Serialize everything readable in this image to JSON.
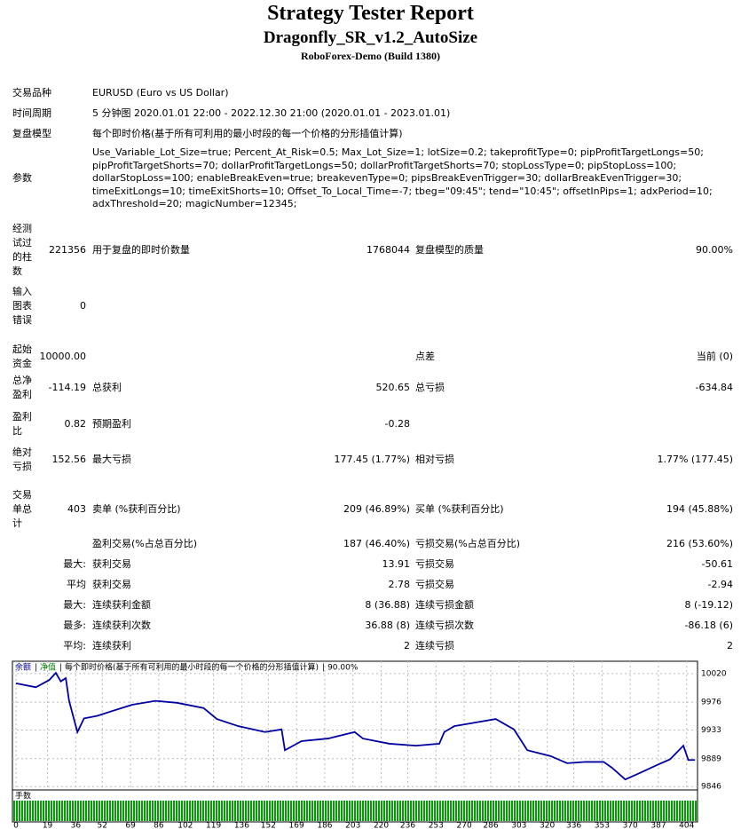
{
  "header": {
    "title": "Strategy Tester Report",
    "subtitle": "Dragonfly_SR_v1.2_AutoSize",
    "server": "RoboForex-Demo (Build 1380)"
  },
  "settings": [
    {
      "label": "交易品种",
      "value": "EURUSD (Euro vs US Dollar)"
    },
    {
      "label": "时间周期",
      "value": "5 分钟图 2020.01.01 22:00 - 2022.12.30 21:00 (2020.01.01 - 2023.01.01)"
    },
    {
      "label": "复盘模型",
      "value": "每个即时价格(基于所有可利用的最小时段的每一个价格的分形插值计算)"
    }
  ],
  "parameters": {
    "label": "参数",
    "lines": [
      "Use_Variable_Lot_Size=true; Percent_At_Risk=0.5; Max_Lot_Size=1; lotSize=0.2; takeprofitType=0; pipProfitTargetLongs=50;",
      "pipProfitTargetShorts=70; dollarProfitTargetLongs=50; dollarProfitTargetShorts=70; stopLossType=0; pipStopLoss=100;",
      "dollarStopLoss=100; enableBreakEven=true; breakevenType=0; pipsBreakEvenTrigger=30; dollarBreakEvenTrigger=30;",
      "timeExitLongs=10; timeExitShorts=10; Offset_To_Local_Time=-7; tbeg=\"09:45\"; tend=\"10:45\"; offsetInPips=1; adxPeriod=10;",
      "adxThreshold=20; magicNumber=12345;"
    ]
  },
  "stats": [
    {
      "label": "经测试过的柱数",
      "value": "221356",
      "l2": "用于复盘的即时价数量",
      "v2": "1768044",
      "l3": "复盘模型的质量",
      "v3": "90.00%"
    },
    {
      "label": "输入图表错误",
      "value": "0"
    },
    {
      "label": "起始资金",
      "value": "10000.00",
      "l3": "点差",
      "v3": "当前 (0)"
    },
    {
      "label": "总净盈利",
      "value": "-114.19",
      "l2": "总获利",
      "v2": "520.65",
      "l3": "总亏损",
      "v3": "-634.84"
    },
    {
      "label": "盈利比",
      "value": "0.82",
      "l2": "预期盈利",
      "v2": "-0.28"
    },
    {
      "label": "绝对亏损",
      "value": "152.56",
      "l2": "最大亏损",
      "v2": "177.45 (1.77%)",
      "l3": "相对亏损",
      "v3": "1.77% (177.45)"
    },
    {
      "label": "交易单总计",
      "value": "403",
      "l2": "卖单 (%获利百分比)",
      "v2": "209 (46.89%)",
      "l3": "买单 (%获利百分比)",
      "v3": "194 (45.88%)"
    },
    {
      "l2": "盈利交易(%占总百分比)",
      "v2": "187 (46.40%)",
      "l3": "亏损交易(%占总百分比)",
      "v3": "216 (53.60%)"
    },
    {
      "value": "最大:",
      "l2": "获利交易",
      "v2": "13.91",
      "l3": "亏损交易",
      "v3": "-50.61"
    },
    {
      "value": "平均",
      "l2": "获利交易",
      "v2": "2.78",
      "l3": "亏损交易",
      "v3": "-2.94"
    },
    {
      "value": "最大:",
      "l2": "连续获利金额",
      "v2": "8 (36.88)",
      "l3": "连续亏损金额",
      "v3": "8 (-19.12)"
    },
    {
      "value": "最多:",
      "l2": "连续获利次数",
      "v2": "36.88 (8)",
      "l3": "连续亏损次数",
      "v3": "-86.18 (6)"
    },
    {
      "value": "平均:",
      "l2": "连续获利",
      "v2": "2",
      "l3": "连续亏损",
      "v3": "2"
    }
  ],
  "chart_data": {
    "type": "line",
    "legend": [
      "净值",
      "每个即时价格(基于所有可利用的最小时段的每一个价格的分形插值计算)",
      "90.00%"
    ],
    "legend_colors": [
      "#008000",
      "#000000",
      "#000000"
    ],
    "x": [
      0,
      12,
      20,
      24,
      27,
      30,
      32,
      37,
      41,
      49,
      60,
      70,
      84,
      97,
      113,
      121,
      134,
      150,
      160,
      162,
      172,
      188,
      204,
      209,
      225,
      241,
      255,
      258,
      264,
      273,
      289,
      300,
      308,
      322,
      332,
      343,
      354,
      359,
      367,
      375,
      386,
      394,
      402,
      405,
      409
    ],
    "series": [
      {
        "name": "余额",
        "color": "#0000a0",
        "values": [
          10005,
          9999,
          10010,
          10021,
          10008,
          10013,
          9978,
          9930,
          9951,
          9955,
          9964,
          9972,
          9978,
          9975,
          9967,
          9950,
          9939,
          9930,
          9934,
          9902,
          9916,
          9920,
          9930,
          9920,
          9912,
          9909,
          9912,
          9930,
          9939,
          9943,
          9950,
          9934,
          9902,
          9893,
          9882,
          9884,
          9884,
          9875,
          9857,
          9866,
          9879,
          9888,
          9909,
          9887,
          9887
        ]
      }
    ],
    "xlim": [
      0,
      410
    ],
    "ylim": [
      9834,
      10039
    ],
    "xticks": [
      0,
      19,
      36,
      52,
      69,
      86,
      102,
      119,
      136,
      152,
      169,
      186,
      203,
      220,
      236,
      253,
      270,
      286,
      303,
      320,
      336,
      353,
      370,
      387,
      404
    ],
    "yticks": [
      10020,
      9976,
      9933,
      9889,
      9846
    ],
    "grid": true,
    "volume_label": "手数",
    "volume_color": "#00a000"
  }
}
